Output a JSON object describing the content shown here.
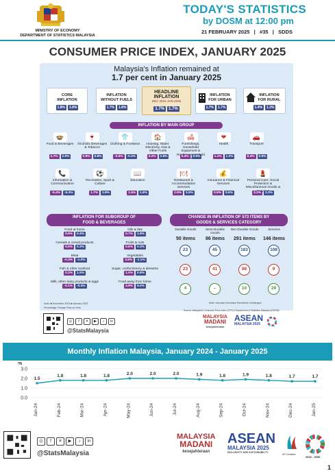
{
  "header": {
    "ministry_line1": "MINISTRY OF ECONOMY",
    "ministry_line2": "DEPARTMENT OF STATISTICS MALAYSIA",
    "title": "TODAY'S STATISTICS",
    "byline": "by DOSM at 12:00 pm",
    "meta": "21 FEBRUARY 2025   |   #35   |   SDDS"
  },
  "main_title": "CONSUMER PRICE INDEX, JANUARY 2025",
  "summary": {
    "line1": "Malaysia's Inflation remained at",
    "line2": "1.7 per cent in January 2025"
  },
  "top_boxes": [
    {
      "label_l1": "CORE",
      "label_l2": "INFLATION",
      "v1": "1.8%",
      "v2": "1.8%"
    },
    {
      "label_l1": "INFLATION",
      "label_l2": "WITHOUT FUELS",
      "v1": "1.7%",
      "v2": "1.8%"
    },
    {
      "label_l1": "INFLATION",
      "label_l2": "FOR URBAN",
      "v1": "1.7%",
      "v2": "1.7%"
    },
    {
      "label_l1": "INFLATION",
      "label_l2": "FOR RURAL",
      "v1": "1.4%",
      "v2": "1.3%"
    }
  ],
  "headline": {
    "label_l1": "HEADLINE",
    "label_l2": "INFLATION",
    "d1": "DEC 2024",
    "d2": "JAN 2025",
    "v1": "1.7%",
    "v2": "1.7%"
  },
  "main_group_title": "INFLATION BY MAIN GROUP",
  "groups": [
    {
      "label": "Food & Beverages",
      "icon": "🍲",
      "v1": "2.7%",
      "v2": "2.5%"
    },
    {
      "label": "Alcoholic Beverages & Tobacco",
      "icon": "🍷",
      "v1": "0.8%",
      "v2": "0.8%"
    },
    {
      "label": "Clothing & Footwear",
      "icon": "👕",
      "v1": "-0.5%",
      "v2": "-0.3%"
    },
    {
      "label": "Housing, Water, Electricity, Gas & Other Fuels",
      "icon": "🏠",
      "v1": "3.2%",
      "v2": "2.8%"
    },
    {
      "label": "Furnishings, Household Equipment & Routine Household Maintenance",
      "icon": "🛋",
      "v1": "0.4%",
      "v2": "0.5%"
    },
    {
      "label": "Health",
      "icon": "❤",
      "v1": "1.1%",
      "v2": "1.2%"
    },
    {
      "label": "Transport",
      "icon": "🚗",
      "v1": "0.4%",
      "v2": "0.9%"
    },
    {
      "label": "Information & Communication",
      "icon": "📞",
      "v1": "-5.4%",
      "v2": "-5.3%"
    },
    {
      "label": "Recreation, Sport & Culture",
      "icon": "⚽",
      "v1": "1.7%",
      "v2": "1.8%"
    },
    {
      "label": "Education",
      "icon": "📖",
      "v1": "1.5%",
      "v2": "1.6%"
    },
    {
      "label": "Restaurant & Accommodation Services",
      "icon": "🍽",
      "v1": "2.9%",
      "v2": "3.5%"
    },
    {
      "label": "Insurance & Financial Services",
      "icon": "💰",
      "v1": "0.5%",
      "v2": "0.6%"
    },
    {
      "label": "Personal Care, Social Protection & Miscellaneous Goods & Services",
      "icon": "💄",
      "v1": "3.2%",
      "v2": "3.3%"
    }
  ],
  "subgroup_title_l1": "INFLATION FOR SUBGROUP OF",
  "subgroup_title_l2": "FOOD & BEVERAGES",
  "subgroups": [
    {
      "label": "Food at home",
      "v1": "0.9%",
      "v2": "0.4%"
    },
    {
      "label": "Oils & fats",
      "v1": "0.7%",
      "v2": "1.5%"
    },
    {
      "label": "Cereals & cereal products",
      "v1": "0.5%",
      "v2": "0.3%"
    },
    {
      "label": "Fruits & nuts",
      "v1": "0.6%",
      "v2": "0.3%"
    },
    {
      "label": "Meat",
      "v1": "-0.3%",
      "v2": "-1.0%"
    },
    {
      "label": "Vegetables",
      "v1": "3.6%",
      "v2": "-1.1%"
    },
    {
      "label": "Fish & other seafood",
      "v1": "0.2%",
      "v2": "1.0%"
    },
    {
      "label": "Sugar, confectionery & desserts",
      "v1": "1.0%",
      "v2": "0.8%"
    },
    {
      "label": "Milk, other dairy products & eggs",
      "v1": "-0.1%",
      "v2": "-0.4%"
    },
    {
      "label": "Food away from home",
      "v1": "4.8%",
      "v2": "5.0%"
    }
  ],
  "change_title_l1": "CHANGE IN INFLATION OF 573 ITEMS BY",
  "change_title_l2": "GOODS & SERVICES CATEGORY",
  "change_cols": [
    {
      "label": "Durable Goods",
      "count": "50 items",
      "inc": "23",
      "dec": "23",
      "unc": "4"
    },
    {
      "label": "Semi-Durable Goods",
      "count": "86 items",
      "inc": "45",
      "dec": "41",
      "unc": "–"
    },
    {
      "label": "Non-Durable Goods",
      "count": "291 items",
      "inc": "183",
      "dec": "98",
      "unc": "10"
    },
    {
      "label": "Services",
      "count": "146 items",
      "inc": "108",
      "dec": "9",
      "unc": "29"
    }
  ],
  "legend_left": "Note:  ■ December 2024   ■ January 2025",
  "legend_left2": "Percentage Change Year-on-Year",
  "legend_right": "Note:  Increase   Decrease   Remained Unchanged",
  "source": "Source: Malaysia's Consumer Price Index (CPI) & Department of Statistics Malaysia (DOSM)",
  "social": {
    "handle": "@StatsMalaysia",
    "icons": [
      "◎",
      "f",
      "✕",
      "▶",
      "♪",
      "in"
    ]
  },
  "brand": {
    "madani_l1": "MALAYSIA",
    "madani_l2": "MADANI",
    "madani_l3": "kesejahteraan",
    "asean_l1": "ASEAN",
    "asean_l2": "MALAYSIA 2025",
    "asean_l3": "INCLUSIVITY AND SUSTAINABILITY",
    "date": "20 October",
    "years": "2016 - 2030"
  },
  "chart_title": "Monthly Inflation Malaysia, January 2024 - January 2025",
  "chart_data": {
    "type": "line",
    "title": "Monthly Inflation Malaysia, January 2024 - January 2025",
    "ylabel": "%",
    "xlabel": "",
    "ylim": [
      0.0,
      3.0
    ],
    "yticks": [
      "0.0",
      "1.0",
      "2.0",
      "3.0"
    ],
    "categories": [
      "Jan-24",
      "Feb-24",
      "Mar-24",
      "Apr-24",
      "May-24",
      "Jun-24",
      "Jul-24",
      "Aug-24",
      "Sep-24",
      "Oct-24",
      "Nov-24",
      "Dec-24",
      "Jan-25"
    ],
    "values": [
      1.5,
      1.8,
      1.8,
      1.8,
      2.0,
      2.0,
      2.0,
      1.9,
      1.8,
      1.9,
      1.8,
      1.7,
      1.7
    ],
    "grid": true,
    "color": "#1a9bb8"
  },
  "page_number": "1"
}
